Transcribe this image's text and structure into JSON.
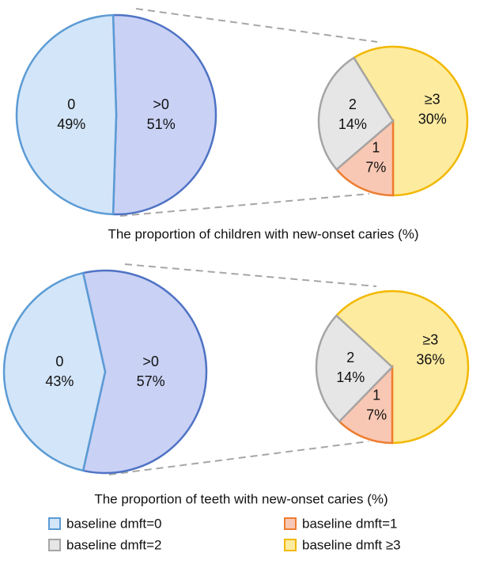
{
  "chart_data": [
    {
      "type": "pie",
      "title": "The proportion of children with new-onset caries (%)",
      "categories": [
        "0",
        ">0"
      ],
      "values": [
        49,
        51
      ],
      "value_labels": [
        "49%",
        "51%"
      ],
      "colors": [
        "#d3e5f8",
        "#c9d1f5"
      ],
      "edge_colors": [
        "#5b9bd5",
        "#4f73c4"
      ],
      "sub": {
        "categories": [
          "2",
          "1",
          "≥3"
        ],
        "values": [
          14,
          7,
          30
        ],
        "value_labels": [
          "14%",
          "7%",
          "30%"
        ],
        "colors": [
          "#e6e6e6",
          "#f9c8b4",
          "#fdeba0"
        ],
        "edge_colors": [
          "#a5a5a5",
          "#ed7d31",
          "#f2b800"
        ]
      }
    },
    {
      "type": "pie",
      "title": "The proportion of teeth with new-onset caries (%)",
      "categories": [
        "0",
        ">0"
      ],
      "values": [
        43,
        57
      ],
      "value_labels": [
        "43%",
        "57%"
      ],
      "colors": [
        "#d3e5f8",
        "#c9d1f5"
      ],
      "edge_colors": [
        "#5b9bd5",
        "#4f73c4"
      ],
      "sub": {
        "categories": [
          "2",
          "1",
          "≥3"
        ],
        "values": [
          14,
          7,
          36
        ],
        "value_labels": [
          "14%",
          "7%",
          "36%"
        ],
        "colors": [
          "#e6e6e6",
          "#f9c8b4",
          "#fdeba0"
        ],
        "edge_colors": [
          "#a5a5a5",
          "#ed7d31",
          "#f2b800"
        ]
      }
    }
  ],
  "legend": [
    {
      "name": "baseline dmft=0",
      "color": "#d3e5f8",
      "edge_color": "#5b9bd5"
    },
    {
      "name": "baseline dmft=1",
      "color": "#f9c8b4",
      "edge_color": "#ed7d31"
    },
    {
      "name": "baseline dmft=2",
      "color": "#e6e6e6",
      "edge_color": "#a5a5a5"
    },
    {
      "name": "baseline dmft ≥3",
      "color": "#fdeba0",
      "edge_color": "#f2b800"
    }
  ]
}
